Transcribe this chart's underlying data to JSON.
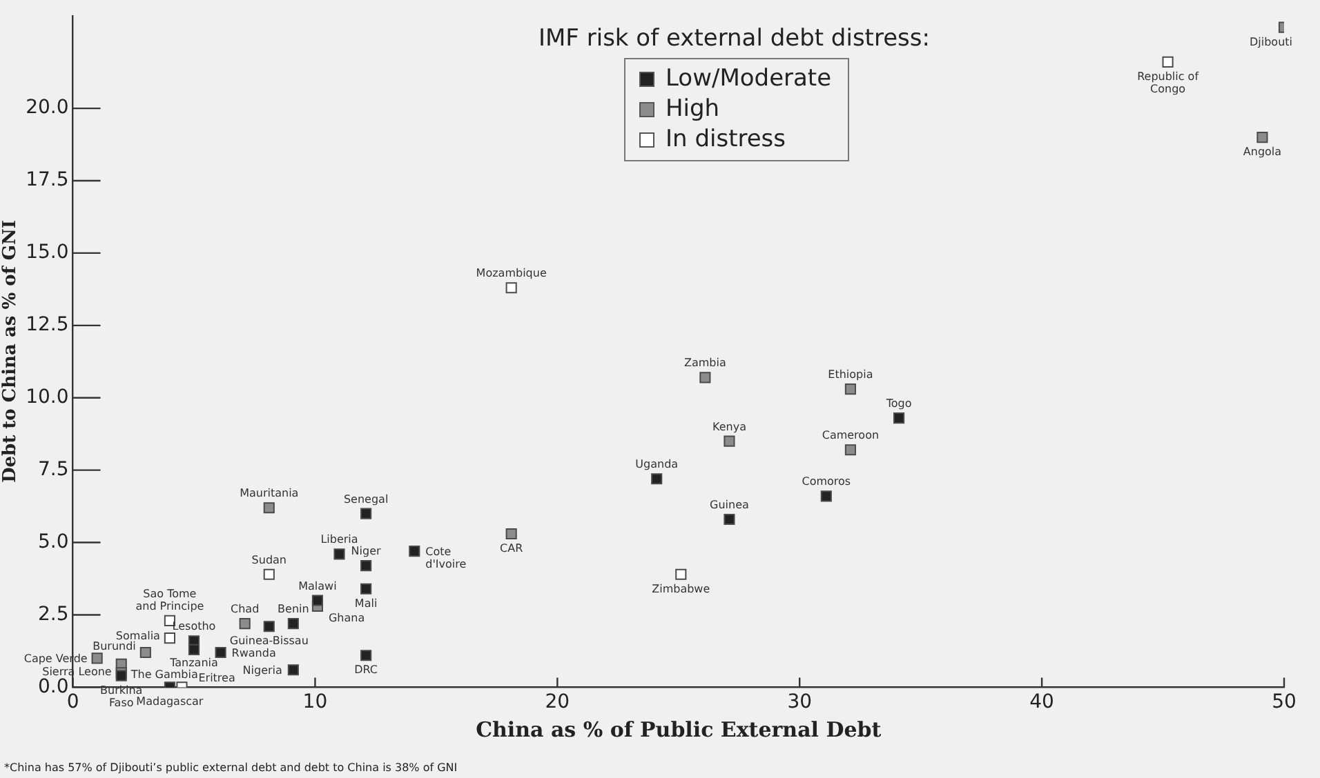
{
  "chart_data": {
    "type": "scatter",
    "xlabel": "China as % of Public External Debt",
    "ylabel": "Debt to China as % of GNI",
    "legend_title": "IMF risk of external debt distress:",
    "legend": "top",
    "grid": false,
    "marker": "square",
    "xlim": [
      0,
      50
    ],
    "xticks": [
      0,
      10,
      20,
      30,
      40,
      50
    ],
    "ylim": [
      0,
      23.2
    ],
    "yticks": [
      {
        "value": 0,
        "label": "0.0"
      },
      {
        "value": 2.5,
        "label": "2.5"
      },
      {
        "value": 5,
        "label": "5.0"
      },
      {
        "value": 7.5,
        "label": "7.5"
      },
      {
        "value": 10,
        "label": "10.0"
      },
      {
        "value": 12.5,
        "label": "12.5"
      },
      {
        "value": 15,
        "label": "15.0"
      },
      {
        "value": 17.5,
        "label": "17.5"
      },
      {
        "value": 20,
        "label": "20.0"
      }
    ],
    "series": [
      {
        "name": "Low/Moderate",
        "color": "#222222",
        "x": [
          12.1,
          11.0,
          12.1,
          14.1,
          12.1,
          10.1,
          9.1,
          8.1,
          5.0,
          5.0,
          6.1,
          9.1,
          12.1,
          4.0,
          2.0,
          24.1,
          27.1,
          31.1,
          34.1
        ],
        "values": [
          6.0,
          4.6,
          4.2,
          4.7,
          3.4,
          3.0,
          2.2,
          2.1,
          1.6,
          1.3,
          1.2,
          0.6,
          1.1,
          0.0,
          0.4,
          7.2,
          5.8,
          6.6,
          9.3
        ]
      },
      {
        "name": "High",
        "color": "#8c8c8c",
        "x": [
          8.1,
          7.1,
          10.1,
          3.0,
          1.0,
          2.0,
          2.0,
          18.1,
          26.1,
          27.1,
          32.1,
          32.1,
          49.1,
          50.0
        ],
        "values": [
          6.2,
          2.2,
          2.8,
          1.2,
          1.0,
          0.8,
          0.5,
          5.3,
          10.7,
          8.5,
          10.3,
          8.2,
          19.0,
          22.8
        ]
      },
      {
        "name": "In distress",
        "color": "#ffffff",
        "x": [
          8.1,
          4.0,
          4.0,
          4.5,
          18.1,
          25.1,
          45.2
        ],
        "values": [
          3.9,
          2.3,
          1.7,
          0.0,
          13.8,
          3.9,
          21.6
        ]
      }
    ],
    "annotations": [
      {
        "text": "Senegal",
        "x": 12.1,
        "y": 6.0
      },
      {
        "text": "Liberia",
        "x": 11.0,
        "y": 4.6
      },
      {
        "text": "Niger",
        "x": 12.1,
        "y": 4.2
      },
      {
        "text": "Cote d'Ivoire",
        "x": 14.1,
        "y": 4.7
      },
      {
        "text": "Mali",
        "x": 12.1,
        "y": 3.4
      },
      {
        "text": "Malawi",
        "x": 10.1,
        "y": 3.0
      },
      {
        "text": "Benin",
        "x": 9.1,
        "y": 2.2
      },
      {
        "text": "Guinea-Bissau",
        "x": 8.1,
        "y": 2.1
      },
      {
        "text": "Lesotho",
        "x": 5.0,
        "y": 1.6
      },
      {
        "text": "Tanzania",
        "x": 5.0,
        "y": 1.3
      },
      {
        "text": "Rwanda",
        "x": 6.1,
        "y": 1.2
      },
      {
        "text": "Nigeria",
        "x": 9.1,
        "y": 0.6
      },
      {
        "text": "DRC",
        "x": 12.1,
        "y": 1.1
      },
      {
        "text": "Madagascar",
        "x": 4.0,
        "y": 0.0
      },
      {
        "text": "Burkina Faso",
        "x": 2.0,
        "y": 0.4
      },
      {
        "text": "Uganda",
        "x": 24.1,
        "y": 7.2
      },
      {
        "text": "Guinea",
        "x": 27.1,
        "y": 5.8
      },
      {
        "text": "Comoros",
        "x": 31.1,
        "y": 6.6
      },
      {
        "text": "Togo",
        "x": 34.1,
        "y": 9.3
      },
      {
        "text": "Mauritania",
        "x": 8.1,
        "y": 6.2
      },
      {
        "text": "Chad",
        "x": 7.1,
        "y": 2.2
      },
      {
        "text": "Ghana",
        "x": 10.1,
        "y": 2.8
      },
      {
        "text": "Burundi",
        "x": 3.0,
        "y": 1.2
      },
      {
        "text": "Cape Verde",
        "x": 1.0,
        "y": 1.0
      },
      {
        "text": "The Gambia",
        "x": 2.0,
        "y": 0.8
      },
      {
        "text": "Sierra Leone",
        "x": 2.0,
        "y": 0.5
      },
      {
        "text": "CAR",
        "x": 18.1,
        "y": 5.3
      },
      {
        "text": "Zambia",
        "x": 26.1,
        "y": 10.7
      },
      {
        "text": "Kenya",
        "x": 27.1,
        "y": 8.5
      },
      {
        "text": "Ethiopia",
        "x": 32.1,
        "y": 10.3
      },
      {
        "text": "Cameroon",
        "x": 32.1,
        "y": 8.2
      },
      {
        "text": "Angola",
        "x": 49.1,
        "y": 19.0
      },
      {
        "text": "Djibouti",
        "x": 50.0,
        "y": 22.8
      },
      {
        "text": "Sudan",
        "x": 8.1,
        "y": 3.9
      },
      {
        "text": "Sao Tome and Principe",
        "x": 4.0,
        "y": 2.3
      },
      {
        "text": "Somalia",
        "x": 4.0,
        "y": 1.7
      },
      {
        "text": "Eritrea",
        "x": 4.5,
        "y": 0.0
      },
      {
        "text": "Mozambique",
        "x": 18.1,
        "y": 13.8
      },
      {
        "text": "Zimbabwe",
        "x": 25.1,
        "y": 3.9
      },
      {
        "text": "Republic of Congo",
        "x": 45.2,
        "y": 21.6
      },
      "*China has 57% of Djibouti’s public external debt  and debt to China is 38% of GNI"
    ]
  }
}
